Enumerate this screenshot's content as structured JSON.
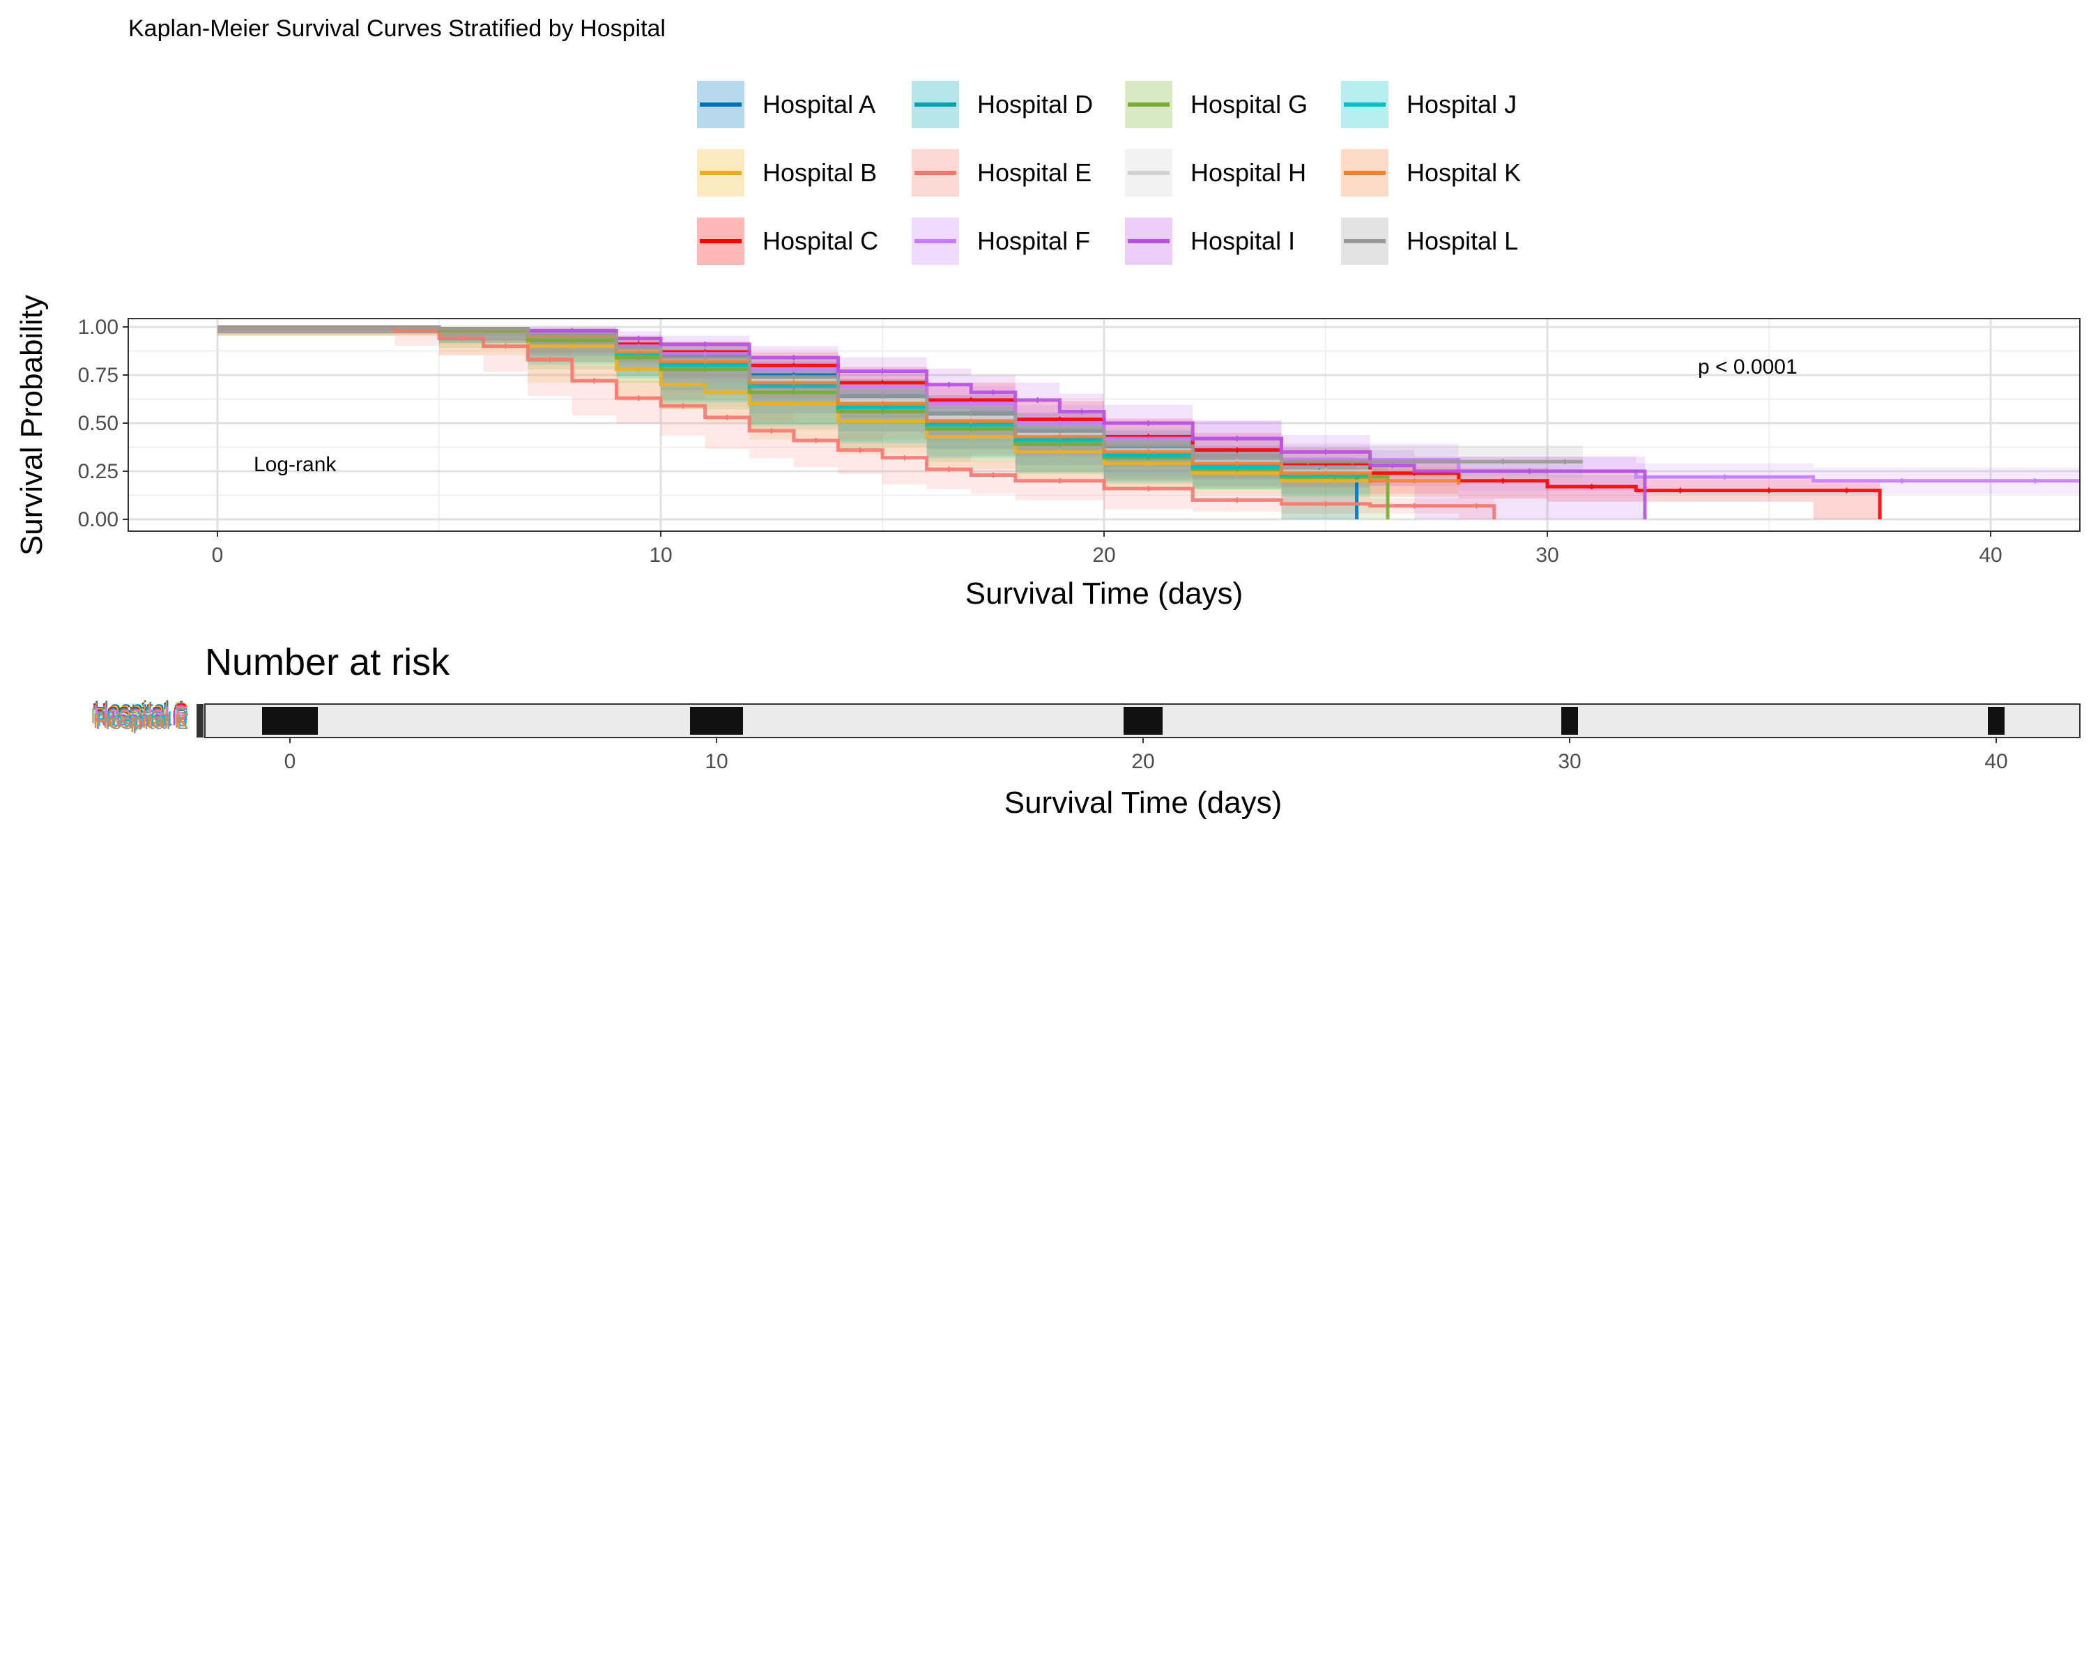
{
  "chart_data": [
    {
      "type": "line",
      "subtype": "kaplan-meier",
      "title": "Kaplan-Meier Survival Curves Stratified by Hospital",
      "xlabel": "Survival Time (days)",
      "ylabel": "Survival Probability",
      "xlim": [
        0,
        42
      ],
      "ylim": [
        0,
        1
      ],
      "x_ticks": [
        0,
        10,
        20,
        30,
        40
      ],
      "y_ticks": [
        0.0,
        0.25,
        0.5,
        0.75,
        1.0
      ],
      "y_tick_labels": [
        "0.00",
        "0.25",
        "0.50",
        "0.75",
        "1.00"
      ],
      "grid": true,
      "legend_position": "top",
      "confidence_bands": true,
      "annotations": {
        "test_label": "Log-rank",
        "p_value": "p < 0.0001"
      },
      "series": [
        {
          "name": "Hospital A",
          "color": "#0072BD",
          "x": [
            0,
            5,
            7,
            9,
            10,
            12,
            14,
            16,
            18,
            20,
            22,
            24,
            25.7
          ],
          "y": [
            1.0,
            0.99,
            0.96,
            0.9,
            0.85,
            0.75,
            0.64,
            0.55,
            0.46,
            0.37,
            0.3,
            0.25,
            0.0
          ]
        },
        {
          "name": "Hospital B",
          "color": "#EDB120",
          "x": [
            0,
            5,
            7,
            9,
            10,
            11,
            12,
            14,
            16,
            18,
            20,
            22,
            24,
            26
          ],
          "y": [
            1.0,
            0.98,
            0.9,
            0.78,
            0.7,
            0.66,
            0.6,
            0.51,
            0.43,
            0.35,
            0.29,
            0.24,
            0.2,
            0.18
          ]
        },
        {
          "name": "Hospital C",
          "color": "#FF0000",
          "x": [
            0,
            5,
            7,
            9,
            10,
            12,
            14,
            16,
            18,
            20,
            22,
            24,
            26,
            28,
            30,
            32,
            34,
            36,
            37.5
          ],
          "y": [
            1.0,
            0.99,
            0.96,
            0.91,
            0.87,
            0.8,
            0.71,
            0.62,
            0.52,
            0.43,
            0.36,
            0.29,
            0.24,
            0.2,
            0.17,
            0.15,
            0.15,
            0.15,
            0.0
          ]
        },
        {
          "name": "Hospital D",
          "color": "#00A0B0",
          "x": [
            0,
            5,
            7,
            9,
            10,
            12,
            14,
            16,
            18,
            20,
            22,
            24,
            26
          ],
          "y": [
            1.0,
            0.99,
            0.95,
            0.87,
            0.81,
            0.7,
            0.59,
            0.5,
            0.42,
            0.34,
            0.28,
            0.23,
            0.19
          ]
        },
        {
          "name": "Hospital E",
          "color": "#F8766D",
          "x": [
            0,
            4,
            5,
            6,
            7,
            8,
            9,
            10,
            11,
            12,
            13,
            14,
            15,
            16,
            17,
            18,
            20,
            22,
            24,
            26,
            28,
            28.8
          ],
          "y": [
            1.0,
            0.98,
            0.94,
            0.9,
            0.83,
            0.72,
            0.63,
            0.59,
            0.53,
            0.46,
            0.41,
            0.36,
            0.32,
            0.26,
            0.23,
            0.2,
            0.16,
            0.1,
            0.08,
            0.07,
            0.07,
            0.0
          ]
        },
        {
          "name": "Hospital F",
          "color": "#C77CFF",
          "x": [
            0,
            5,
            7,
            9,
            10,
            12,
            14,
            16,
            18,
            20,
            24,
            28,
            32,
            36,
            40,
            42
          ],
          "y": [
            1.0,
            0.99,
            0.96,
            0.9,
            0.86,
            0.78,
            0.69,
            0.6,
            0.5,
            0.42,
            0.31,
            0.25,
            0.22,
            0.2,
            0.2,
            0.2
          ]
        },
        {
          "name": "Hospital G",
          "color": "#77AC30",
          "x": [
            0,
            5,
            7,
            9,
            10,
            12,
            14,
            16,
            18,
            20,
            22,
            24,
            26.4
          ],
          "y": [
            1.0,
            0.98,
            0.93,
            0.84,
            0.78,
            0.66,
            0.56,
            0.47,
            0.39,
            0.32,
            0.26,
            0.22,
            0.0
          ]
        },
        {
          "name": "Hospital H",
          "color": "#D0D0D0",
          "x": [
            0,
            5,
            7,
            9,
            10,
            12,
            14,
            16,
            18,
            20,
            22,
            24,
            26
          ],
          "y": [
            1.0,
            0.99,
            0.95,
            0.88,
            0.83,
            0.72,
            0.62,
            0.53,
            0.44,
            0.36,
            0.3,
            0.25,
            0.21
          ]
        },
        {
          "name": "Hospital I",
          "color": "#B550E0",
          "x": [
            0,
            5,
            7,
            9,
            10,
            12,
            14,
            16,
            17,
            18,
            19,
            20,
            22,
            24,
            26,
            27,
            32.2
          ],
          "y": [
            1.0,
            0.99,
            0.98,
            0.94,
            0.91,
            0.84,
            0.77,
            0.7,
            0.66,
            0.62,
            0.56,
            0.5,
            0.42,
            0.35,
            0.28,
            0.25,
            0.0
          ]
        },
        {
          "name": "Hospital J",
          "color": "#00BFC4",
          "x": [
            0,
            5,
            7,
            9,
            10,
            12,
            14,
            16,
            18,
            20,
            22,
            24,
            26
          ],
          "y": [
            1.0,
            0.99,
            0.95,
            0.86,
            0.8,
            0.69,
            0.58,
            0.49,
            0.41,
            0.33,
            0.27,
            0.23,
            0.2
          ]
        },
        {
          "name": "Hospital K",
          "color": "#F58231",
          "x": [
            0,
            5,
            7,
            9,
            10,
            12,
            14,
            16,
            18,
            20,
            22,
            24,
            26,
            28
          ],
          "y": [
            1.0,
            0.99,
            0.95,
            0.87,
            0.82,
            0.71,
            0.6,
            0.51,
            0.43,
            0.35,
            0.29,
            0.24,
            0.2,
            0.18
          ]
        },
        {
          "name": "Hospital L",
          "color": "#999999",
          "x": [
            0,
            5,
            7,
            9,
            10,
            12,
            14,
            16,
            18,
            20,
            22,
            24,
            25.2,
            26,
            28,
            30,
            30.8
          ],
          "y": [
            1.0,
            0.99,
            0.96,
            0.89,
            0.84,
            0.74,
            0.64,
            0.55,
            0.46,
            0.38,
            0.33,
            0.3,
            0.3,
            0.3,
            0.3,
            0.3,
            0.3
          ]
        }
      ]
    },
    {
      "type": "table",
      "title": "Number at risk",
      "xlabel": "Survival Time (days)",
      "xlim": [
        -2,
        42
      ],
      "x_ticks": [
        0,
        10,
        20,
        30,
        40
      ],
      "row_labels": [
        "Hospital A",
        "Hospital B",
        "Hospital C",
        "Hospital D",
        "Hospital E",
        "Hospital F",
        "Hospital G",
        "Hospital H",
        "Hospital I",
        "Hospital J",
        "Hospital K",
        "Hospital L"
      ],
      "note": "Overlapping at-risk counts rendered as illegible stacked glyphs in the original"
    }
  ]
}
